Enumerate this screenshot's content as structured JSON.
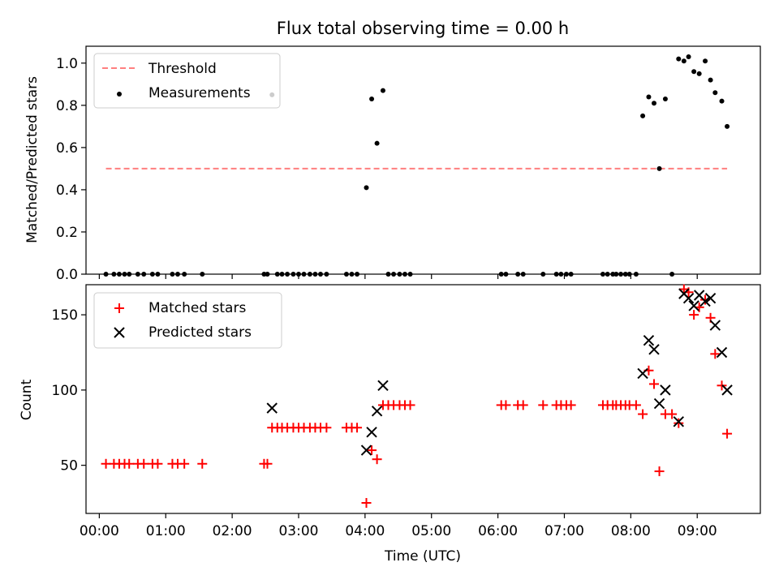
{
  "chart_data": [
    {
      "type": "scatter",
      "title": "Flux total observing time = 0.00 h",
      "xlabel": "",
      "ylabel": "Matched/Predicted stars",
      "xlim": [
        -0.2,
        9.95
      ],
      "ylim": [
        0,
        1.08
      ],
      "yticks": [
        0.0,
        0.2,
        0.4,
        0.6,
        0.8,
        1.0
      ],
      "ytick_labels": [
        "0.0",
        "0.2",
        "0.4",
        "0.6",
        "0.8",
        "1.0"
      ],
      "legend_position": "upper-left",
      "threshold": {
        "name": "Threshold",
        "value": 0.5,
        "x_range": [
          0.1,
          9.45
        ],
        "color": "#ff7f7f",
        "style": "dashed"
      },
      "series": [
        {
          "name": "Measurements",
          "marker": "dot",
          "color": "#000000",
          "x": [
            0.1,
            0.22,
            0.3,
            0.38,
            0.45,
            0.58,
            0.67,
            0.8,
            0.88,
            1.1,
            1.18,
            1.28,
            1.55,
            2.48,
            2.53,
            2.6,
            2.68,
            2.75,
            2.83,
            2.92,
            3.0,
            3.08,
            3.17,
            3.25,
            3.33,
            3.42,
            3.72,
            3.8,
            3.88,
            4.02,
            4.1,
            4.18,
            4.27,
            4.35,
            4.43,
            4.52,
            4.6,
            4.68,
            6.05,
            6.12,
            6.3,
            6.38,
            6.68,
            6.88,
            6.95,
            7.03,
            7.1,
            7.58,
            7.65,
            7.73,
            7.78,
            7.85,
            7.92,
            7.98,
            8.08,
            8.18,
            8.27,
            8.35,
            8.43,
            8.52,
            8.62,
            8.72,
            8.8,
            8.87,
            8.95,
            9.03,
            9.12,
            9.2,
            9.27,
            9.37,
            9.45
          ],
          "y": [
            0,
            0,
            0,
            0,
            0,
            0,
            0,
            0,
            0,
            0,
            0,
            0,
            0,
            0,
            0,
            0.85,
            0,
            0,
            0,
            0,
            0,
            0,
            0,
            0,
            0,
            0,
            0,
            0,
            0,
            0.41,
            0.83,
            0.62,
            0.87,
            0,
            0,
            0,
            0,
            0,
            0,
            0,
            0,
            0,
            0,
            0,
            0,
            0,
            0,
            0,
            0,
            0,
            0,
            0,
            0,
            0,
            0,
            0.75,
            0.84,
            0.81,
            0.5,
            0.83,
            0,
            1.02,
            1.01,
            1.03,
            0.96,
            0.95,
            1.01,
            0.92,
            0.86,
            0.82,
            0.7
          ]
        }
      ]
    },
    {
      "type": "scatter",
      "title": "",
      "xlabel": "Time (UTC)",
      "ylabel": "Count",
      "xlim": [
        -0.2,
        9.95
      ],
      "ylim": [
        18,
        170
      ],
      "yticks": [
        50,
        100,
        150
      ],
      "ytick_labels": [
        "50",
        "100",
        "150"
      ],
      "xticks": [
        0,
        1,
        2,
        3,
        4,
        5,
        6,
        7,
        8,
        9
      ],
      "xtick_labels": [
        "00:00",
        "01:00",
        "02:00",
        "03:00",
        "04:00",
        "05:00",
        "06:00",
        "07:00",
        "08:00",
        "09:00"
      ],
      "legend_position": "upper-left",
      "series": [
        {
          "name": "Matched stars",
          "marker": "plus",
          "color": "#ff0000",
          "x": [
            0.1,
            0.22,
            0.3,
            0.38,
            0.45,
            0.58,
            0.67,
            0.8,
            0.88,
            1.1,
            1.18,
            1.28,
            1.55,
            2.48,
            2.53,
            2.6,
            2.68,
            2.75,
            2.83,
            2.92,
            3.0,
            3.08,
            3.17,
            3.25,
            3.33,
            3.42,
            3.72,
            3.8,
            3.88,
            4.02,
            4.1,
            4.18,
            4.27,
            4.35,
            4.43,
            4.52,
            4.6,
            4.68,
            6.05,
            6.12,
            6.3,
            6.38,
            6.68,
            6.88,
            6.95,
            7.03,
            7.1,
            7.58,
            7.65,
            7.73,
            7.78,
            7.85,
            7.92,
            7.98,
            8.08,
            8.18,
            8.27,
            8.35,
            8.43,
            8.52,
            8.62,
            8.72,
            8.8,
            8.87,
            8.95,
            9.03,
            9.12,
            9.2,
            9.27,
            9.37,
            9.45
          ],
          "y": [
            51,
            51,
            51,
            51,
            51,
            51,
            51,
            51,
            51,
            51,
            51,
            51,
            51,
            51,
            51,
            75,
            75,
            75,
            75,
            75,
            75,
            75,
            75,
            75,
            75,
            75,
            75,
            75,
            75,
            25,
            60,
            54,
            90,
            90,
            90,
            90,
            90,
            90,
            90,
            90,
            90,
            90,
            90,
            90,
            90,
            90,
            90,
            90,
            90,
            90,
            90,
            90,
            90,
            90,
            90,
            84,
            113,
            104,
            46,
            84,
            84,
            78,
            167,
            165,
            150,
            155,
            160,
            148,
            124,
            103,
            71
          ]
        },
        {
          "name": "Predicted stars",
          "marker": "x",
          "color": "#000000",
          "x": [
            2.6,
            4.02,
            4.1,
            4.18,
            4.27,
            8.18,
            8.27,
            8.35,
            8.43,
            8.52,
            8.72,
            8.8,
            8.87,
            8.95,
            9.03,
            9.12,
            9.2,
            9.27,
            9.37,
            9.45
          ],
          "y": [
            88,
            60,
            72,
            86,
            103,
            111,
            133,
            127,
            91,
            100,
            79,
            164,
            161,
            156,
            163,
            159,
            161,
            143,
            125,
            100
          ]
        }
      ]
    }
  ]
}
